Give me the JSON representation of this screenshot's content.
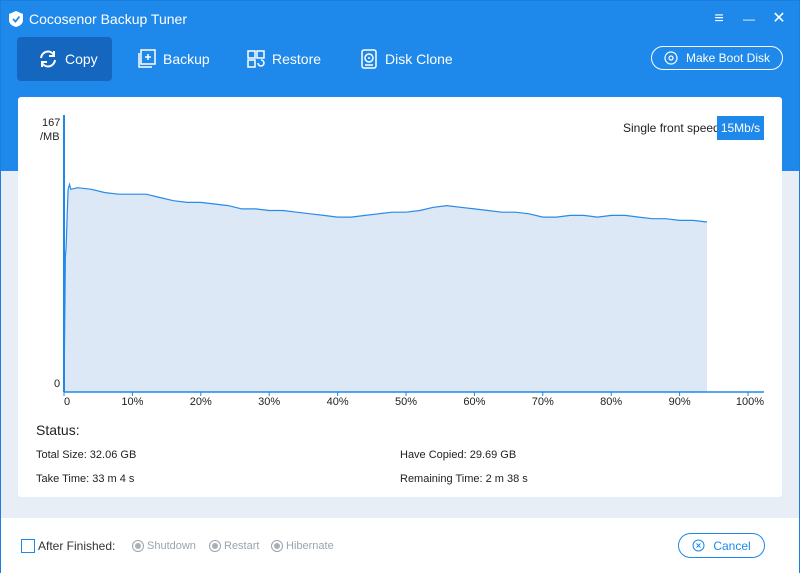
{
  "window": {
    "title": "Cocosenor Backup Tuner",
    "controls": {
      "menu": "≡",
      "minimize": "—",
      "close": "✕"
    }
  },
  "tabs": [
    {
      "label": "Copy",
      "icon": "copy-refresh-icon",
      "active": true
    },
    {
      "label": "Backup",
      "icon": "backup-plus-icon",
      "active": false
    },
    {
      "label": "Restore",
      "icon": "restore-icon",
      "active": false
    },
    {
      "label": "Disk Clone",
      "icon": "disk-clone-icon",
      "active": false
    }
  ],
  "boot_button": {
    "label": "Make Boot Disk",
    "icon": "disc-icon"
  },
  "speed": {
    "label": "Single front speed",
    "value": "15Mb/s"
  },
  "chart_data": {
    "type": "area",
    "y_top_label": "167",
    "y_unit_label": "/MB",
    "y_bottom_label": "0",
    "ylim": [
      0,
      167
    ],
    "xlim": [
      0,
      100
    ],
    "x_ticks": [
      "0",
      "10%",
      "20%",
      "30%",
      "40%",
      "50%",
      "60%",
      "70%",
      "80%",
      "90%",
      "100%"
    ],
    "x_tick_values": [
      0,
      10,
      20,
      30,
      40,
      50,
      60,
      70,
      80,
      90,
      100
    ],
    "grid": false,
    "colors": {
      "line": "#2a8be6",
      "fill": "#dce8f5",
      "axis": "#1e88eb"
    },
    "x": [
      0,
      0.2,
      0.3,
      0.5,
      0.6,
      0.8,
      1,
      2,
      4,
      6,
      8,
      10,
      12,
      14,
      16,
      18,
      20,
      22,
      24,
      26,
      28,
      30,
      32,
      34,
      36,
      38,
      40,
      42,
      44,
      46,
      48,
      50,
      52,
      54,
      56,
      58,
      60,
      62,
      64,
      66,
      68,
      70,
      72,
      74,
      76,
      78,
      80,
      82,
      84,
      86,
      88,
      90,
      92,
      94
    ],
    "y": [
      0,
      83,
      88,
      112,
      124,
      127,
      124,
      125,
      124,
      122,
      121,
      121,
      121,
      119,
      117,
      116,
      116,
      115,
      114,
      112,
      112,
      111,
      111,
      110,
      109,
      108,
      107,
      107,
      108,
      109,
      110,
      110,
      111,
      113,
      114,
      113,
      112,
      111,
      110,
      110,
      109,
      107,
      107,
      108,
      108,
      107,
      108,
      108,
      107,
      106,
      106,
      105,
      105,
      104
    ]
  },
  "status": {
    "title": "Status:",
    "total_size": "Total Size: 32.06 GB",
    "have_copied": "Have Copied: 29.69 GB",
    "take_time": "Take Time: 33 m 4 s",
    "remaining_time": "Remaining Time: 2 m 38 s"
  },
  "footer": {
    "after_finished": "After Finished:",
    "options": [
      "Shutdown",
      "Restart",
      "Hibernate"
    ],
    "cancel": "Cancel",
    "cancel_icon": "cancel-x-icon"
  }
}
